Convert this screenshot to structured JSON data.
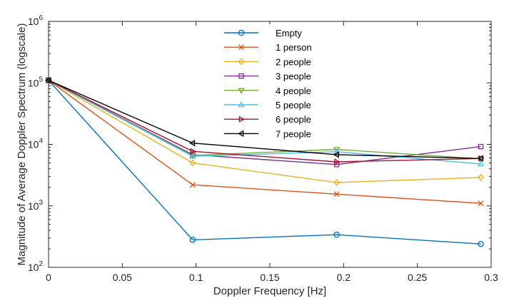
{
  "chart_data": {
    "type": "line",
    "xlabel": "Doppler Frequency [Hz]",
    "ylabel": "Magnitude of Average Doppler Spectrum (logscale)",
    "x": [
      0,
      0.0977,
      0.1953,
      0.293
    ],
    "xlim": [
      0,
      0.3
    ],
    "ylim": [
      100,
      1000000
    ],
    "yscale": "log",
    "xticks": [
      {
        "v": 0,
        "label": "0"
      },
      {
        "v": 0.05,
        "label": "0.05"
      },
      {
        "v": 0.1,
        "label": "0.1"
      },
      {
        "v": 0.15,
        "label": "0.15"
      },
      {
        "v": 0.2,
        "label": "0.2"
      },
      {
        "v": 0.25,
        "label": "0.25"
      },
      {
        "v": 0.3,
        "label": "0.3"
      }
    ],
    "yticks": [
      {
        "v": 100,
        "base": "10",
        "exp": "2"
      },
      {
        "v": 1000,
        "base": "10",
        "exp": "3"
      },
      {
        "v": 10000,
        "base": "10",
        "exp": "4"
      },
      {
        "v": 100000,
        "base": "10",
        "exp": "5"
      },
      {
        "v": 1000000,
        "base": "10",
        "exp": "6"
      }
    ],
    "grid": false,
    "legend_position": "top-center",
    "series": [
      {
        "name": "Empty",
        "color": "#0072BD",
        "marker": "circle",
        "values": [
          110000,
          280,
          340,
          240
        ]
      },
      {
        "name": "1 person",
        "color": "#D95319",
        "marker": "x",
        "values": [
          110000,
          2200,
          1550,
          1100
        ]
      },
      {
        "name": "2 people",
        "color": "#EDB120",
        "marker": "diamond",
        "values": [
          110000,
          5000,
          2400,
          2900
        ]
      },
      {
        "name": "3 people",
        "color": "#7E2F8E",
        "marker": "square",
        "values": [
          110000,
          6800,
          4700,
          9200
        ]
      },
      {
        "name": "4 people",
        "color": "#77AC30",
        "marker": "triangle-down",
        "values": [
          110000,
          6600,
          8300,
          5800
        ]
      },
      {
        "name": "5 people",
        "color": "#4DBEEE",
        "marker": "triangle-up",
        "values": [
          110000,
          6400,
          7600,
          4800
        ]
      },
      {
        "name": "6 people",
        "color": "#A2142F",
        "marker": "triangle-right",
        "values": [
          110000,
          7700,
          5200,
          5900
        ]
      },
      {
        "name": "7 people",
        "color": "#000000",
        "marker": "triangle-left",
        "values": [
          110000,
          10500,
          6800,
          5900
        ]
      }
    ]
  }
}
